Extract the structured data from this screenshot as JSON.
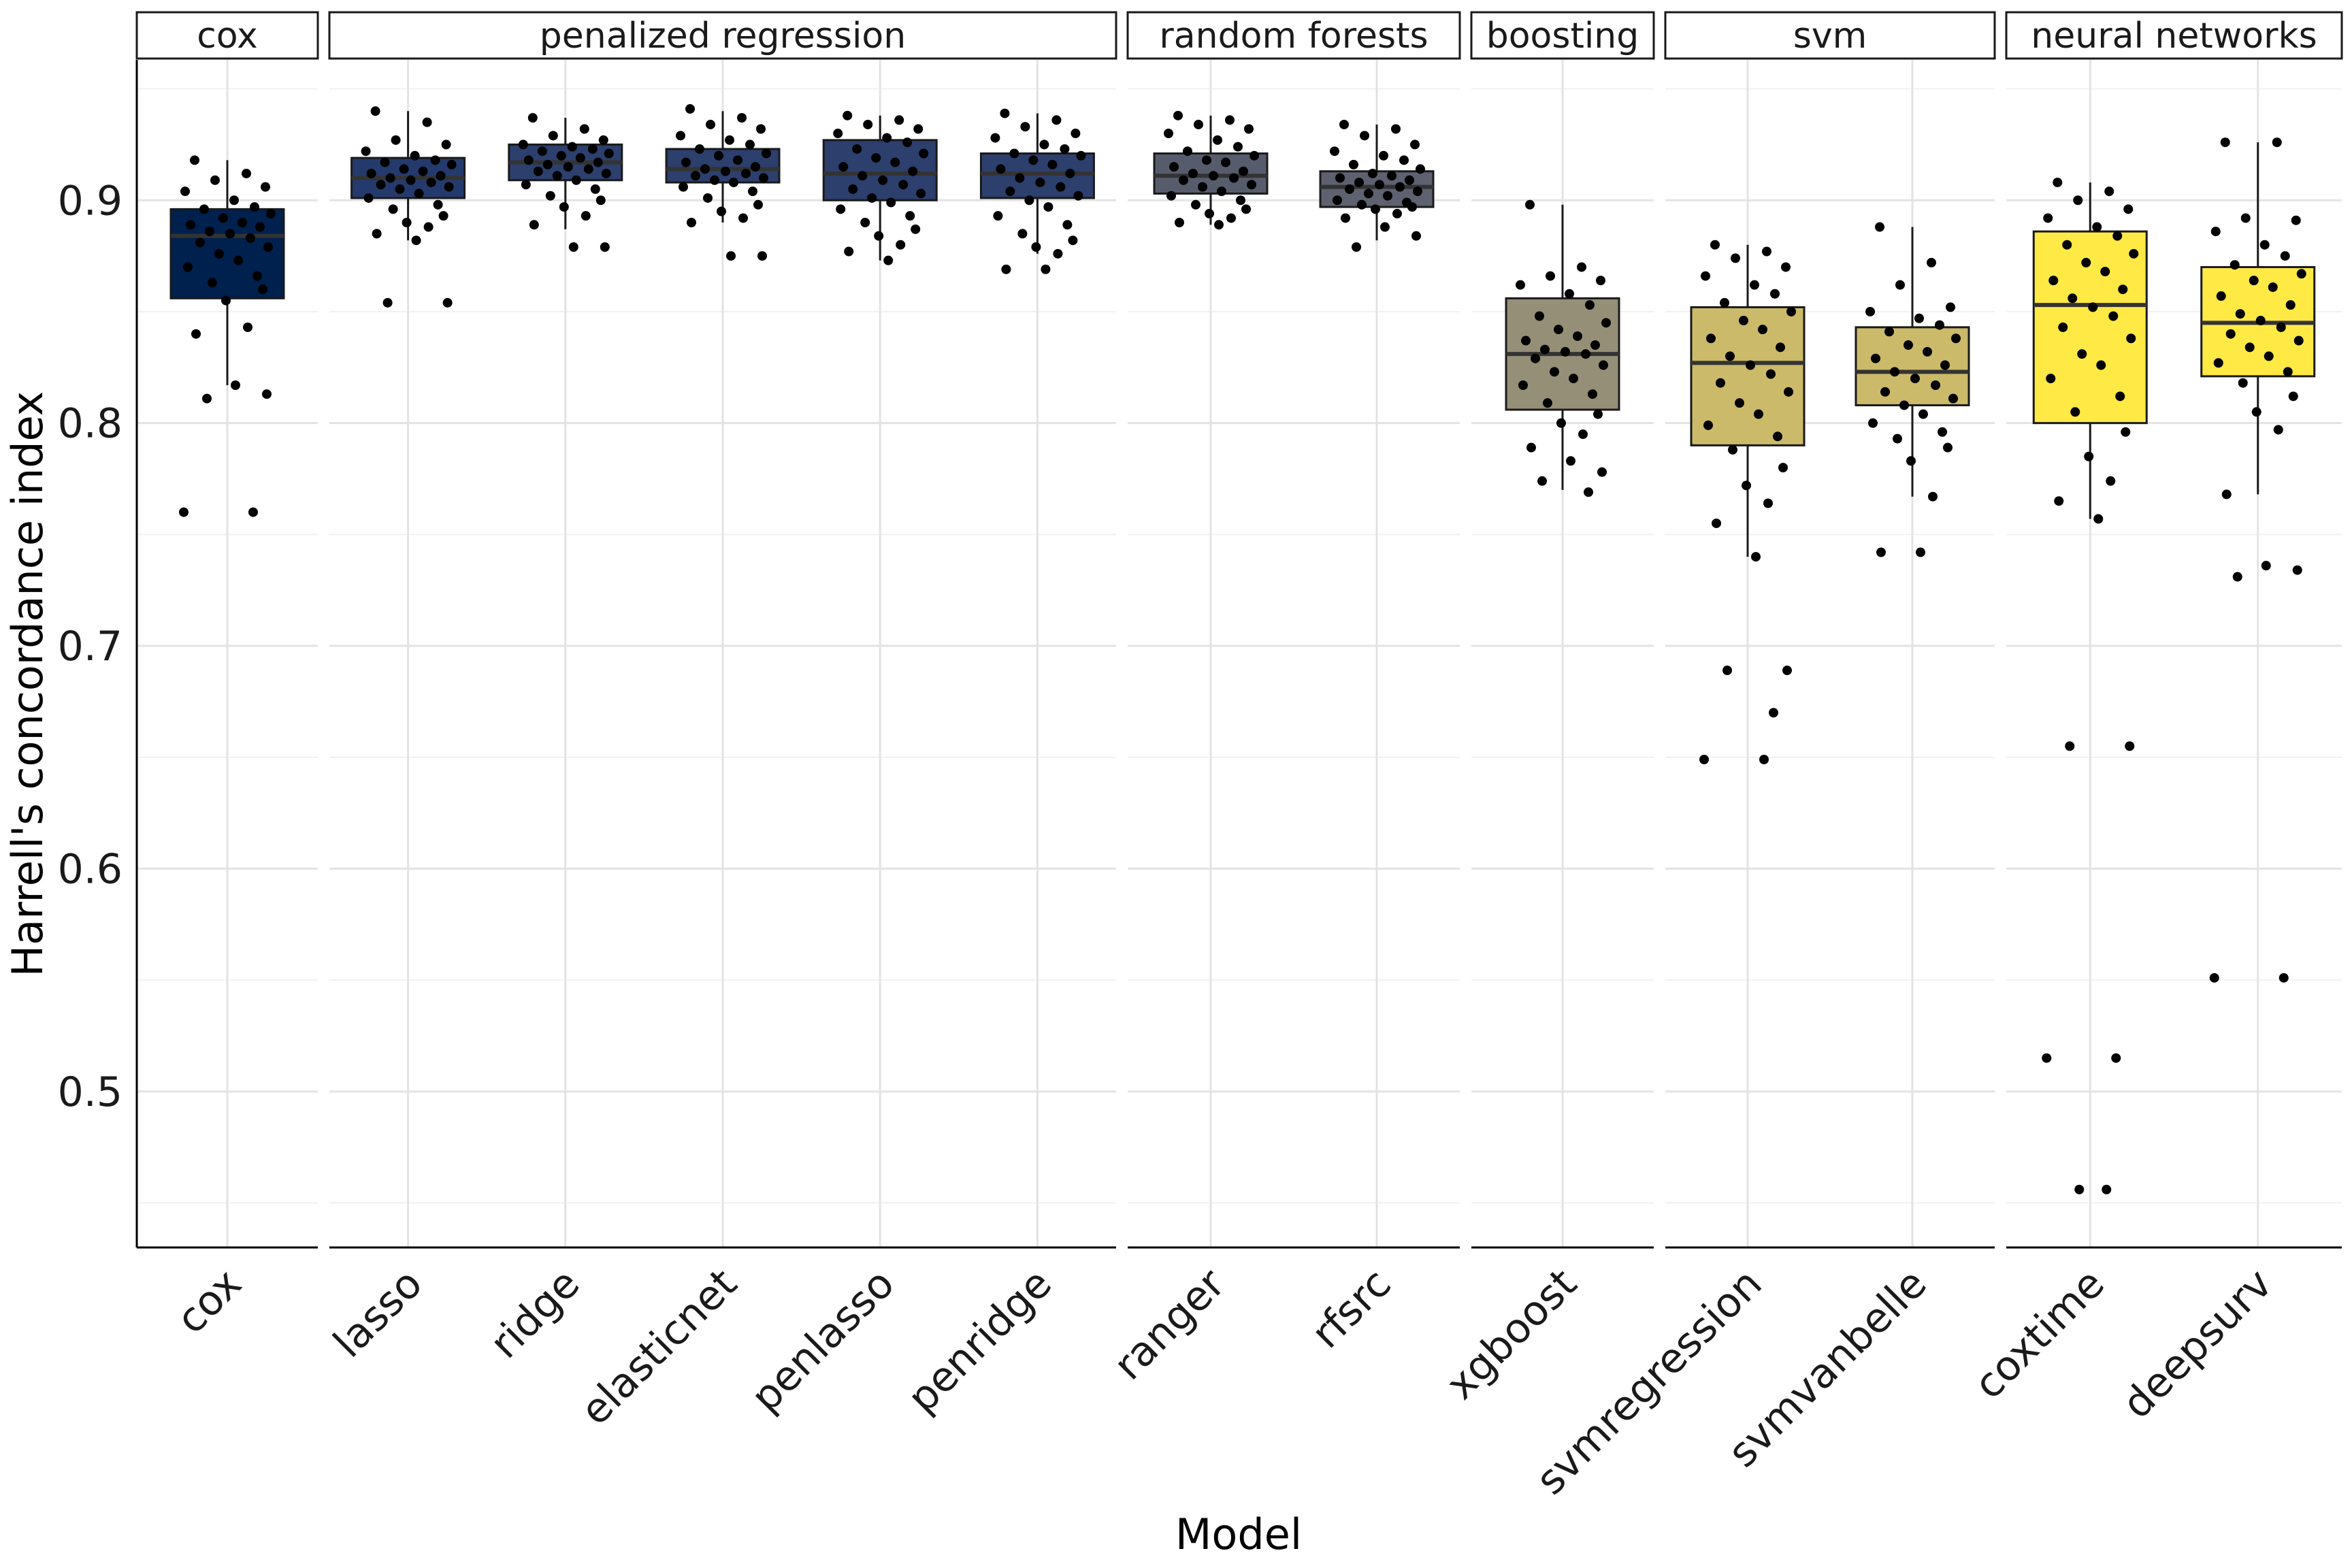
{
  "chart_data": {
    "type": "boxplot",
    "xlabel": "Model",
    "ylabel": "Harrell's concordance index",
    "ylim": [
      0.43,
      0.963
    ],
    "yticks": [
      0.5,
      0.6,
      0.7,
      0.8,
      0.9
    ],
    "grid": true,
    "legend": "none",
    "facets": [
      {
        "label": "cox",
        "models": [
          "cox"
        ]
      },
      {
        "label": "penalized regression",
        "models": [
          "lasso",
          "ridge",
          "elasticnet",
          "penlasso",
          "penridge"
        ]
      },
      {
        "label": "random forests",
        "models": [
          "ranger",
          "rfsrc"
        ]
      },
      {
        "label": "boosting",
        "models": [
          "xgboost"
        ]
      },
      {
        "label": "svm",
        "models": [
          "svmregression",
          "svmvanbelle"
        ]
      },
      {
        "label": "neural networks",
        "models": [
          "coxtime",
          "deepsurv"
        ]
      }
    ],
    "boxes": [
      {
        "model": "cox",
        "color": "#00204d",
        "min": 0.817,
        "q1": 0.856,
        "median": 0.884,
        "q3": 0.896,
        "max": 0.918,
        "points": [
          0.918,
          0.912,
          0.909,
          0.906,
          0.904,
          0.9,
          0.897,
          0.896,
          0.894,
          0.892,
          0.89,
          0.889,
          0.888,
          0.886,
          0.885,
          0.883,
          0.881,
          0.879,
          0.876,
          0.873,
          0.87,
          0.866,
          0.863,
          0.86,
          0.855,
          0.843,
          0.84,
          0.817,
          0.813,
          0.811,
          0.76,
          0.76
        ]
      },
      {
        "model": "lasso",
        "color": "#253a6c",
        "min": 0.882,
        "q1": 0.901,
        "median": 0.91,
        "q3": 0.919,
        "max": 0.94,
        "points": [
          0.94,
          0.935,
          0.927,
          0.925,
          0.922,
          0.92,
          0.918,
          0.917,
          0.916,
          0.914,
          0.913,
          0.912,
          0.911,
          0.91,
          0.909,
          0.908,
          0.907,
          0.906,
          0.905,
          0.903,
          0.901,
          0.898,
          0.896,
          0.893,
          0.89,
          0.888,
          0.885,
          0.882,
          0.854,
          0.854
        ]
      },
      {
        "model": "ridge",
        "color": "#2c3f6d",
        "min": 0.887,
        "q1": 0.909,
        "median": 0.917,
        "q3": 0.925,
        "max": 0.937,
        "points": [
          0.937,
          0.932,
          0.929,
          0.927,
          0.925,
          0.924,
          0.923,
          0.922,
          0.921,
          0.92,
          0.919,
          0.918,
          0.917,
          0.916,
          0.915,
          0.914,
          0.913,
          0.912,
          0.911,
          0.909,
          0.907,
          0.905,
          0.902,
          0.9,
          0.897,
          0.893,
          0.889,
          0.879,
          0.879
        ]
      },
      {
        "model": "elasticnet",
        "color": "#2c3f6d",
        "min": 0.89,
        "q1": 0.908,
        "median": 0.914,
        "q3": 0.923,
        "max": 0.94,
        "points": [
          0.941,
          0.937,
          0.934,
          0.932,
          0.929,
          0.927,
          0.925,
          0.923,
          0.921,
          0.92,
          0.918,
          0.917,
          0.915,
          0.914,
          0.913,
          0.912,
          0.911,
          0.91,
          0.909,
          0.908,
          0.906,
          0.904,
          0.901,
          0.898,
          0.895,
          0.892,
          0.89,
          0.875,
          0.875
        ]
      },
      {
        "model": "penlasso",
        "color": "#2c3f6d",
        "min": 0.873,
        "q1": 0.9,
        "median": 0.912,
        "q3": 0.927,
        "max": 0.938,
        "points": [
          0.938,
          0.936,
          0.934,
          0.932,
          0.93,
          0.928,
          0.926,
          0.923,
          0.921,
          0.919,
          0.917,
          0.915,
          0.913,
          0.911,
          0.909,
          0.907,
          0.905,
          0.903,
          0.901,
          0.899,
          0.896,
          0.893,
          0.89,
          0.887,
          0.884,
          0.88,
          0.877,
          0.873
        ]
      },
      {
        "model": "penridge",
        "color": "#2c3f6d",
        "min": 0.876,
        "q1": 0.901,
        "median": 0.912,
        "q3": 0.921,
        "max": 0.939,
        "points": [
          0.939,
          0.936,
          0.933,
          0.93,
          0.928,
          0.925,
          0.923,
          0.921,
          0.92,
          0.918,
          0.916,
          0.914,
          0.912,
          0.91,
          0.908,
          0.906,
          0.904,
          0.902,
          0.9,
          0.897,
          0.893,
          0.889,
          0.885,
          0.882,
          0.879,
          0.876,
          0.869,
          0.869
        ]
      },
      {
        "model": "ranger",
        "color": "#575c6d",
        "min": 0.889,
        "q1": 0.903,
        "median": 0.911,
        "q3": 0.921,
        "max": 0.938,
        "points": [
          0.938,
          0.936,
          0.934,
          0.932,
          0.93,
          0.927,
          0.924,
          0.922,
          0.92,
          0.918,
          0.917,
          0.915,
          0.913,
          0.912,
          0.911,
          0.91,
          0.909,
          0.907,
          0.906,
          0.904,
          0.902,
          0.9,
          0.898,
          0.896,
          0.894,
          0.892,
          0.89,
          0.889
        ]
      },
      {
        "model": "rfsrc",
        "color": "#5e616f",
        "min": 0.882,
        "q1": 0.897,
        "median": 0.906,
        "q3": 0.913,
        "max": 0.934,
        "points": [
          0.934,
          0.932,
          0.929,
          0.925,
          0.922,
          0.92,
          0.918,
          0.916,
          0.914,
          0.912,
          0.911,
          0.91,
          0.909,
          0.908,
          0.907,
          0.906,
          0.905,
          0.904,
          0.903,
          0.902,
          0.9,
          0.899,
          0.898,
          0.897,
          0.896,
          0.894,
          0.892,
          0.888,
          0.884,
          0.879
        ]
      },
      {
        "model": "xgboost",
        "color": "#958f78",
        "min": 0.77,
        "q1": 0.806,
        "median": 0.831,
        "q3": 0.856,
        "max": 0.898,
        "points": [
          0.898,
          0.87,
          0.866,
          0.864,
          0.862,
          0.858,
          0.853,
          0.848,
          0.845,
          0.842,
          0.839,
          0.837,
          0.835,
          0.833,
          0.832,
          0.831,
          0.829,
          0.826,
          0.823,
          0.82,
          0.817,
          0.813,
          0.809,
          0.804,
          0.8,
          0.795,
          0.789,
          0.783,
          0.778,
          0.774,
          0.769
        ]
      },
      {
        "model": "svmregression",
        "color": "#cbba69",
        "min": 0.74,
        "q1": 0.79,
        "median": 0.827,
        "q3": 0.852,
        "max": 0.88,
        "points": [
          0.88,
          0.877,
          0.874,
          0.87,
          0.866,
          0.862,
          0.858,
          0.854,
          0.85,
          0.846,
          0.842,
          0.838,
          0.834,
          0.83,
          0.826,
          0.822,
          0.818,
          0.814,
          0.809,
          0.804,
          0.799,
          0.794,
          0.788,
          0.78,
          0.772,
          0.764,
          0.755,
          0.74,
          0.689,
          0.689,
          0.67,
          0.649,
          0.649
        ]
      },
      {
        "model": "svmvanbelle",
        "color": "#cbba69",
        "min": 0.767,
        "q1": 0.808,
        "median": 0.823,
        "q3": 0.843,
        "max": 0.888,
        "points": [
          0.888,
          0.872,
          0.862,
          0.852,
          0.85,
          0.847,
          0.844,
          0.841,
          0.838,
          0.835,
          0.832,
          0.829,
          0.826,
          0.823,
          0.82,
          0.817,
          0.814,
          0.811,
          0.808,
          0.804,
          0.8,
          0.796,
          0.793,
          0.789,
          0.783,
          0.767,
          0.742,
          0.742
        ]
      },
      {
        "model": "coxtime",
        "color": "#ffe945",
        "min": 0.757,
        "q1": 0.8,
        "median": 0.853,
        "q3": 0.886,
        "max": 0.908,
        "points": [
          0.908,
          0.904,
          0.9,
          0.896,
          0.892,
          0.888,
          0.884,
          0.88,
          0.876,
          0.872,
          0.868,
          0.864,
          0.86,
          0.856,
          0.852,
          0.848,
          0.843,
          0.838,
          0.831,
          0.826,
          0.82,
          0.812,
          0.805,
          0.796,
          0.785,
          0.774,
          0.765,
          0.757,
          0.655,
          0.655,
          0.515,
          0.515,
          0.456,
          0.456
        ]
      },
      {
        "model": "deepsurv",
        "color": "#ffe945",
        "min": 0.768,
        "q1": 0.821,
        "median": 0.845,
        "q3": 0.87,
        "max": 0.926,
        "points": [
          0.926,
          0.926,
          0.892,
          0.891,
          0.886,
          0.88,
          0.875,
          0.871,
          0.867,
          0.864,
          0.861,
          0.857,
          0.853,
          0.849,
          0.846,
          0.843,
          0.84,
          0.837,
          0.834,
          0.83,
          0.827,
          0.823,
          0.818,
          0.812,
          0.805,
          0.797,
          0.768,
          0.736,
          0.734,
          0.731,
          0.551,
          0.551
        ]
      }
    ]
  }
}
